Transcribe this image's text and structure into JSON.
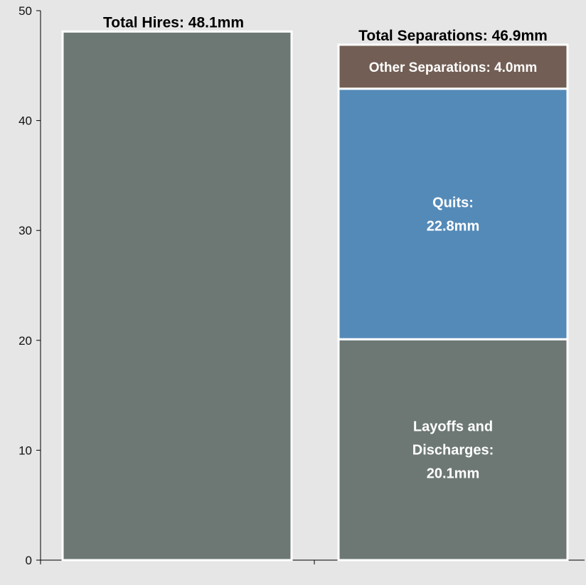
{
  "chart_data": {
    "type": "bar",
    "stacked": true,
    "title": "",
    "xlabel": "",
    "ylabel": "",
    "ylim": [
      0,
      50
    ],
    "y_ticks": [
      0,
      10,
      20,
      30,
      40,
      50
    ],
    "grid": false,
    "legend": "none",
    "categories": [
      "Total Hires",
      "Total Separations"
    ],
    "totals": [
      48.1,
      46.9
    ],
    "total_labels": [
      "Total Hires: 48.1mm",
      "Total Separations: 46.9mm"
    ],
    "series": [
      {
        "key": "base",
        "values": [
          48.1,
          20.1
        ],
        "color": "#6d7875",
        "labels": [
          "",
          [
            "Layoffs and",
            "Discharges:",
            "20.1mm"
          ]
        ]
      },
      {
        "key": "quits",
        "values": [
          0,
          22.8
        ],
        "color": "#548ab8",
        "labels": [
          "",
          [
            "Quits:",
            "22.8mm"
          ]
        ]
      },
      {
        "key": "other",
        "values": [
          0,
          4.0
        ],
        "color": "#725e54",
        "labels": [
          "",
          [
            "Other Separations: 4.0mm"
          ]
        ]
      }
    ]
  }
}
